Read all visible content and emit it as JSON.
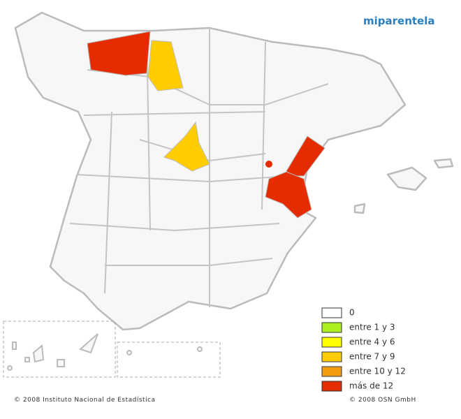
{
  "logo": "miparentela",
  "legend": [
    {
      "label": "0",
      "color": "#ffffff"
    },
    {
      "label": "entre 1 y 3",
      "color": "#aaf01e"
    },
    {
      "label": "entre 4 y 6",
      "color": "#ffff00"
    },
    {
      "label": "entre 7 y 9",
      "color": "#ffcc00"
    },
    {
      "label": "entre 10 y 12",
      "color": "#f39c12"
    },
    {
      "label": "más de 12",
      "color": "#e52b00"
    }
  ],
  "footer": {
    "left": "© 2008 Instituto Nacional de Estadística",
    "right": "© 2008 OSN GmbH"
  }
}
